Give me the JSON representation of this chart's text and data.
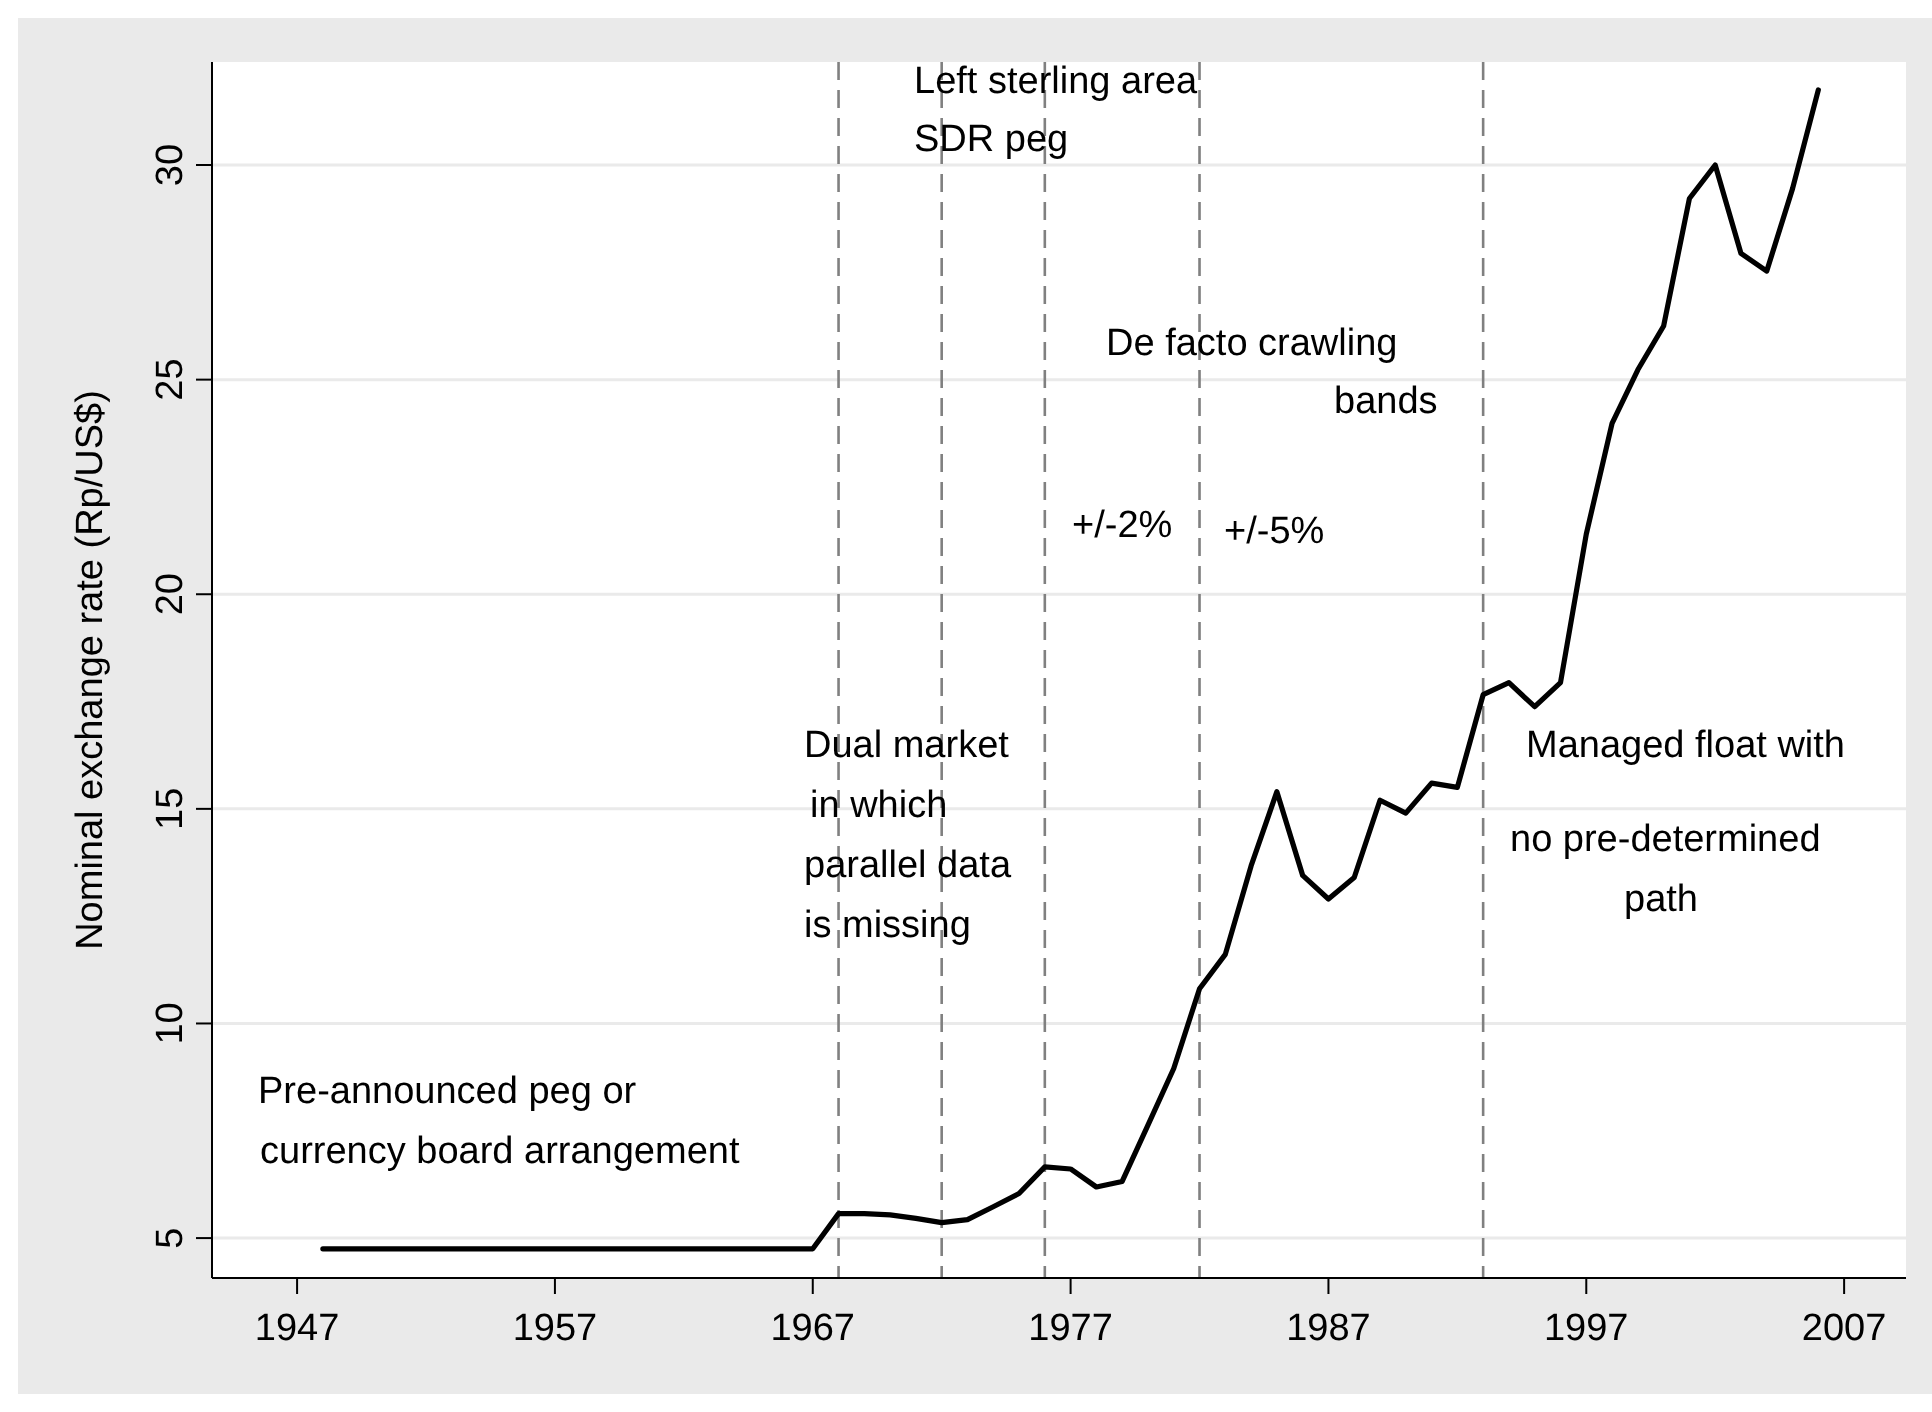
{
  "chart_data": {
    "type": "line",
    "ylabel": "Nominal exchange rate (Rp/US$)",
    "x": [
      1948,
      1949,
      1950,
      1951,
      1952,
      1953,
      1954,
      1955,
      1956,
      1957,
      1958,
      1959,
      1960,
      1961,
      1962,
      1963,
      1964,
      1965,
      1966,
      1967,
      1968,
      1969,
      1970,
      1971,
      1972,
      1973,
      1974,
      1975,
      1976,
      1977,
      1978,
      1979,
      1980,
      1981,
      1982,
      1983,
      1984,
      1985,
      1986,
      1987,
      1988,
      1989,
      1990,
      1991,
      1992,
      1993,
      1994,
      1995,
      1996,
      1997,
      1998,
      1999,
      2000,
      2001,
      2002,
      2003,
      2004,
      2005,
      2006
    ],
    "series": [
      {
        "color": "#000000",
        "values": [
          4.75,
          4.75,
          4.75,
          4.75,
          4.75,
          4.75,
          4.75,
          4.75,
          4.75,
          4.75,
          4.75,
          4.75,
          4.75,
          4.75,
          4.75,
          4.75,
          4.75,
          4.75,
          4.75,
          4.75,
          5.57,
          5.57,
          5.54,
          5.46,
          5.36,
          5.43,
          5.73,
          6.04,
          6.66,
          6.61,
          6.19,
          6.32,
          7.63,
          8.95,
          10.81,
          11.61,
          13.67,
          15.4,
          13.45,
          12.9,
          13.4,
          15.2,
          14.9,
          15.6,
          15.5,
          17.66,
          17.94,
          17.38,
          17.94,
          21.4,
          23.98,
          25.23,
          26.25,
          29.22,
          30.0,
          27.94,
          27.53,
          29.45,
          31.75
        ]
      }
    ],
    "xlim": [
      1943.7,
      2009.4
    ],
    "ylim": [
      4.07,
      32.4
    ],
    "xticks": [
      1947,
      1957,
      1967,
      1977,
      1987,
      1997,
      2007
    ],
    "yticks": [
      5,
      10,
      15,
      20,
      25,
      30
    ],
    "grid": "y",
    "marker": "none",
    "line_style": "solid",
    "ref_lines": [
      {
        "axis": "x",
        "value": 1968,
        "color": "#808080",
        "line_style": "dashed"
      },
      {
        "axis": "x",
        "value": 1972,
        "color": "#808080",
        "line_style": "dashed"
      },
      {
        "axis": "x",
        "value": 1976,
        "color": "#808080",
        "line_style": "dashed"
      },
      {
        "axis": "x",
        "value": 1982,
        "color": "#808080",
        "line_style": "dashed"
      },
      {
        "axis": "x",
        "value": 1993,
        "color": "#808080",
        "line_style": "dashed"
      }
    ],
    "annotations": [
      "Pre-announced peg or",
      "currency board arrangement",
      "Dual market",
      "in which",
      "parallel data",
      "is missing",
      "Left sterling area",
      "SDR peg",
      "De facto crawling",
      "bands",
      "+/-2%",
      "+/-5%",
      "Managed float with",
      "no pre-determined",
      "path"
    ]
  }
}
